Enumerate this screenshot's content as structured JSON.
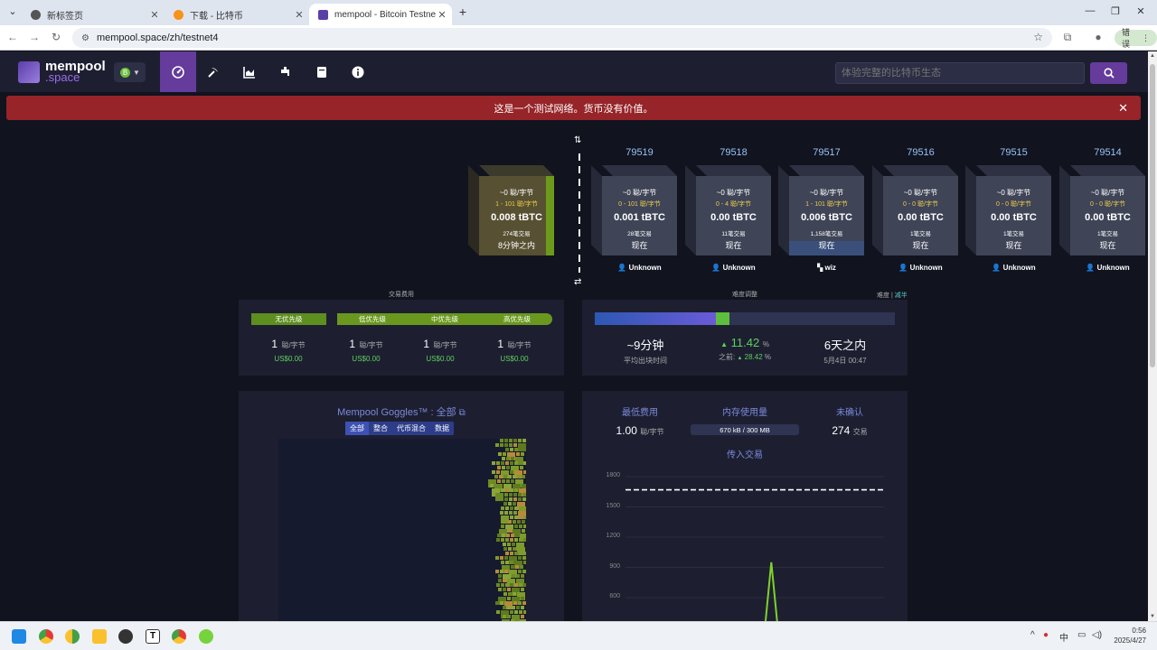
{
  "browser": {
    "tabs": [
      {
        "label": "新标签页",
        "active": false
      },
      {
        "label": "下载 - 比特币",
        "active": false
      },
      {
        "label": "mempool - Bitcoin Testnet4",
        "active": true
      }
    ],
    "new_tab": "+",
    "url": "mempool.space/zh/testnet4",
    "error_button": "错误"
  },
  "app": {
    "logo_line1": "mempool",
    "logo_line2": ".space",
    "network_badge": "B",
    "nav_icons": [
      "dashboard-icon",
      "mining-icon",
      "graphs-icon",
      "faucet-icon",
      "docs-icon",
      "about-icon"
    ],
    "search_placeholder": "体验完整的比特币生态",
    "search_icon": "search-icon"
  },
  "banner": {
    "text": "这是一个测试网络。货币没有价值。",
    "close": "✕"
  },
  "pending_block": {
    "fee": "~0 聪/字节",
    "range": "1 - 101 聪/字节",
    "amount": "0.008 tBTC",
    "count": "274笔交易",
    "time": "8分钟之内"
  },
  "blocks": [
    {
      "height": "79519",
      "fee": "~0 聪/字节",
      "range": "0 - 101 聪/字节",
      "amount": "0.001 tBTC",
      "count": "28笔交易",
      "time": "现在",
      "miner": "Unknown"
    },
    {
      "height": "79518",
      "fee": "~0 聪/字节",
      "range": "0 - 4 聪/字节",
      "amount": "0.00 tBTC",
      "count": "11笔交易",
      "time": "现在",
      "miner": "Unknown"
    },
    {
      "height": "79517",
      "fee": "~0 聪/字节",
      "range": "1 - 101 聪/字节",
      "amount": "0.006 tBTC",
      "count": "1,158笔交易",
      "time": "现在",
      "miner": "wiz"
    },
    {
      "height": "79516",
      "fee": "~0 聪/字节",
      "range": "0 - 0 聪/字节",
      "amount": "0.00 tBTC",
      "count": "1笔交易",
      "time": "现在",
      "miner": "Unknown"
    },
    {
      "height": "79515",
      "fee": "~0 聪/字节",
      "range": "0 - 0 聪/字节",
      "amount": "0.00 tBTC",
      "count": "1笔交易",
      "time": "现在",
      "miner": "Unknown"
    },
    {
      "height": "79514",
      "fee": "~0 聪/字节",
      "range": "0 - 0 聪/字节",
      "amount": "0.00 tBTC",
      "count": "1笔交易",
      "time": "现在",
      "miner": "Unknown"
    }
  ],
  "fees": {
    "title": "交易费用",
    "labels": [
      "无优先级",
      "低优先级",
      "中优先级",
      "高优先级"
    ],
    "values": [
      "1",
      "1",
      "1",
      "1"
    ],
    "unit": "聪/字节",
    "usd": [
      "US$0.00",
      "US$0.00",
      "US$0.00",
      "US$0.00"
    ]
  },
  "difficulty": {
    "title": "难度调整",
    "subtitle_prefix": "难度 |",
    "subtitle_link": "减半",
    "progress_fraction": 0.45,
    "stats": [
      {
        "big": "~9分钟",
        "small": "平均出块时间"
      },
      {
        "big": "11.42",
        "unit": "%",
        "small_prefix": "之前: ",
        "small": "28.42",
        "small_unit": "%"
      },
      {
        "big": "6天之内",
        "small": "5月4日 00:47"
      }
    ]
  },
  "goggles": {
    "title": "Mempool Goggles™ : 全部",
    "filters": [
      "全部",
      "整合",
      "代币混合",
      "数据"
    ]
  },
  "mempool": {
    "min_fee_label": "最低费用",
    "min_fee_value": "1.00",
    "min_fee_unit": "聪/字节",
    "usage_label": "内存使用量",
    "usage_value": "670 kB / 300 MB",
    "usage_fraction": 0.002,
    "unconfirmed_label": "未确认",
    "unconfirmed_value": "274",
    "unconfirmed_unit": "交易",
    "incoming_title": "传入交易"
  },
  "chart_data": {
    "type": "line",
    "title": "传入交易",
    "yticks": [
      1800,
      1500,
      1200,
      900,
      600
    ],
    "reference_line": 1670,
    "series": [
      {
        "values": [
          0,
          0,
          0,
          0,
          0,
          0,
          0,
          0,
          0,
          0,
          0,
          0,
          0,
          0,
          0,
          0,
          0,
          0,
          0,
          0,
          0,
          0,
          950,
          0,
          0,
          0,
          0,
          0,
          0,
          0,
          0,
          0,
          0,
          0,
          0,
          0,
          0,
          0,
          0,
          0
        ]
      }
    ]
  },
  "taskbar": {
    "tray_lang": "中",
    "time": "0:56",
    "date": "2025/4/27"
  }
}
